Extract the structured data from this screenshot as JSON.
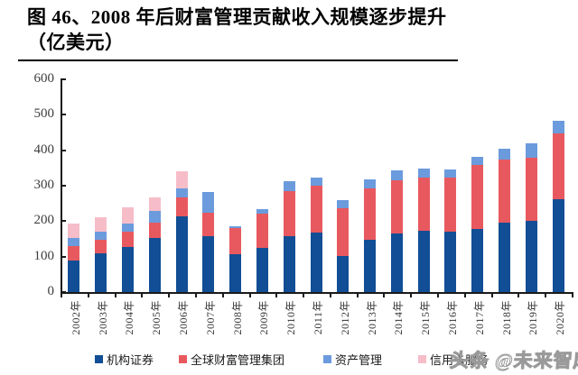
{
  "header": {
    "title_line1": "图 46、2008 年后财富管理贡献收入规模逐步提升",
    "title_line2": "（亿美元）"
  },
  "watermark": "头条 @未来智库",
  "colors": {
    "institutional_securities": "#114E95",
    "global_wealth_management": "#E8595F",
    "asset_management": "#6B9BDD",
    "credit_card_services": "#F6BDC9",
    "axis": "#1a1a1a",
    "title_text": "#000000"
  },
  "chart_data": {
    "type": "bar",
    "stacked": true,
    "title": "图 46、2008 年后财富管理贡献收入规模逐步提升（亿美元）",
    "xlabel": "",
    "ylabel": "",
    "ylim": [
      0,
      600
    ],
    "yticks": [
      0,
      100,
      200,
      300,
      400,
      500,
      600
    ],
    "grid": false,
    "legend_position": "bottom",
    "categories": [
      "2002年",
      "2003年",
      "2004年",
      "2005年",
      "2006年",
      "2007年",
      "2008年",
      "2009年",
      "2010年",
      "2011年",
      "2012年",
      "2013年",
      "2014年",
      "2015年",
      "2016年",
      "2017年",
      "2018年",
      "2019年",
      "2020年"
    ],
    "series": [
      {
        "name": "机构证券",
        "color": "#114E95",
        "values": [
          90,
          110,
          128,
          152,
          214,
          158,
          108,
          124,
          158,
          168,
          103,
          148,
          165,
          173,
          171,
          178,
          196,
          202,
          261
        ]
      },
      {
        "name": "全球财富管理集团",
        "color": "#E8595F",
        "values": [
          40,
          38,
          42,
          44,
          53,
          65,
          72,
          96,
          126,
          131,
          133,
          144,
          151,
          151,
          152,
          180,
          179,
          178,
          186
        ]
      },
      {
        "name": "资产管理",
        "color": "#6B9BDD",
        "values": [
          23,
          22,
          23,
          32,
          26,
          58,
          6,
          15,
          30,
          24,
          24,
          26,
          27,
          25,
          24,
          23,
          30,
          39,
          37
        ]
      },
      {
        "name": "信用卡服务",
        "color": "#F6BDC9",
        "values": [
          40,
          40,
          45,
          40,
          47,
          0,
          0,
          0,
          0,
          0,
          0,
          0,
          0,
          0,
          0,
          0,
          0,
          0,
          0
        ]
      }
    ]
  }
}
